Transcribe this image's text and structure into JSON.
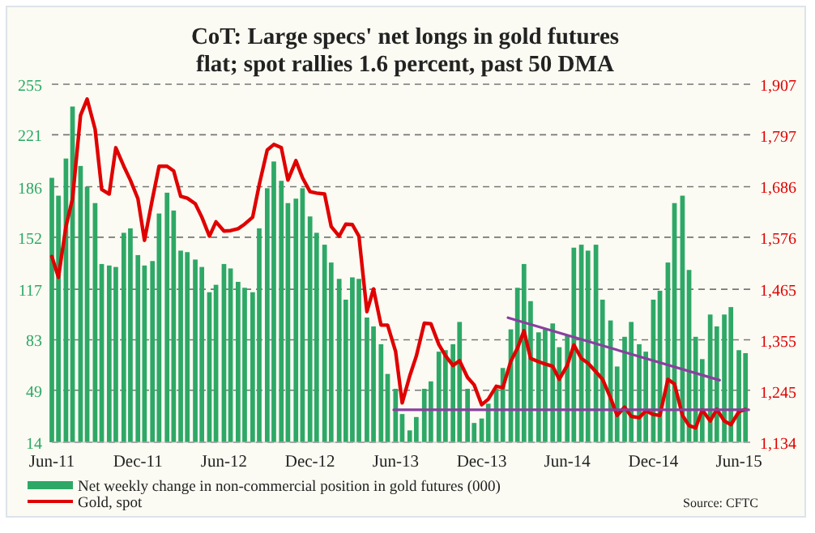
{
  "chart_data": {
    "type": "bar",
    "title": "CoT:  Large specs' net longs in gold futures\nflat; spot rallies 1.6 percent, past 50 DMA",
    "x": [
      "2011-06-01",
      "2011-06-15",
      "2011-07-01",
      "2011-07-15",
      "2011-08-01",
      "2011-08-15",
      "2011-09-01",
      "2011-09-15",
      "2011-10-01",
      "2011-10-15",
      "2011-11-01",
      "2011-11-15",
      "2011-12-01",
      "2011-12-15",
      "2012-01-01",
      "2012-01-15",
      "2012-02-01",
      "2012-02-15",
      "2012-03-01",
      "2012-03-15",
      "2012-04-01",
      "2012-04-15",
      "2012-05-01",
      "2012-05-15",
      "2012-06-01",
      "2012-06-15",
      "2012-07-01",
      "2012-07-15",
      "2012-08-01",
      "2012-08-15",
      "2012-09-01",
      "2012-09-15",
      "2012-10-01",
      "2012-10-15",
      "2012-11-01",
      "2012-11-15",
      "2012-12-01",
      "2012-12-15",
      "2013-01-01",
      "2013-01-15",
      "2013-02-01",
      "2013-02-15",
      "2013-03-01",
      "2013-03-15",
      "2013-04-01",
      "2013-04-15",
      "2013-05-01",
      "2013-05-15",
      "2013-06-01",
      "2013-06-15",
      "2013-07-01",
      "2013-07-15",
      "2013-08-01",
      "2013-08-15",
      "2013-09-01",
      "2013-09-15",
      "2013-10-01",
      "2013-10-15",
      "2013-11-01",
      "2013-11-15",
      "2013-12-01",
      "2013-12-15",
      "2014-01-01",
      "2014-01-15",
      "2014-02-01",
      "2014-02-15",
      "2014-03-01",
      "2014-03-15",
      "2014-04-01",
      "2014-04-15",
      "2014-05-01",
      "2014-05-15",
      "2014-06-01",
      "2014-06-15",
      "2014-07-01",
      "2014-07-15",
      "2014-08-01",
      "2014-08-15",
      "2014-09-01",
      "2014-09-15",
      "2014-10-01",
      "2014-10-15",
      "2014-11-01",
      "2014-11-15",
      "2014-12-01",
      "2014-12-15",
      "2015-01-01",
      "2015-01-15",
      "2015-02-01",
      "2015-02-15",
      "2015-03-01",
      "2015-03-15",
      "2015-04-01",
      "2015-04-15",
      "2015-05-01",
      "2015-05-15",
      "2015-06-01",
      "2015-06-15"
    ],
    "series": [
      {
        "name": "Net weekly change in non-commercial position in gold futures (000)",
        "color": "#2ea866",
        "values": [
          192,
          180,
          205,
          240,
          200,
          186,
          175,
          134,
          133,
          132,
          155,
          158,
          140,
          133,
          136,
          168,
          182,
          170,
          143,
          142,
          137,
          132,
          115,
          120,
          134,
          131,
          122,
          118,
          115,
          158,
          185,
          203,
          190,
          175,
          178,
          185,
          166,
          155,
          147,
          135,
          124,
          110,
          125,
          124,
          98,
          92,
          80,
          60,
          50,
          33,
          22,
          31,
          50,
          55,
          75,
          76,
          80,
          95,
          50,
          27,
          30,
          40,
          50,
          64,
          90,
          118,
          134,
          109,
          88,
          90,
          94,
          78,
          86,
          145,
          147,
          143,
          147,
          110,
          96,
          65,
          85,
          95,
          80,
          75,
          110,
          116,
          135,
          175,
          180,
          130,
          85,
          70,
          100,
          92,
          100,
          105,
          76,
          74
        ]
      },
      {
        "name": "Gold, spot",
        "type": "line",
        "axis": "y2",
        "color": "#e00000",
        "values": [
          1535,
          1490,
          1600,
          1660,
          1840,
          1875,
          1810,
          1680,
          1670,
          1770,
          1730,
          1700,
          1660,
          1570,
          1660,
          1730,
          1730,
          1720,
          1665,
          1661,
          1649,
          1620,
          1579,
          1610,
          1590,
          1591,
          1595,
          1605,
          1620,
          1690,
          1765,
          1777,
          1770,
          1700,
          1742,
          1705,
          1675,
          1672,
          1670,
          1600,
          1579,
          1605,
          1604,
          1579,
          1416,
          1465,
          1387,
          1387,
          1330,
          1219,
          1277,
          1320,
          1391,
          1390,
          1345,
          1321,
          1300,
          1310,
          1274,
          1258,
          1215,
          1227,
          1255,
          1252,
          1309,
          1337,
          1375,
          1315,
          1308,
          1303,
          1298,
          1270,
          1300,
          1344,
          1315,
          1305,
          1286,
          1270,
          1230,
          1192,
          1210,
          1190,
          1187,
          1202,
          1194,
          1192,
          1270,
          1260,
          1192,
          1170,
          1165,
          1204,
          1180,
          1205,
          1180,
          1172,
          1200,
          1205
        ]
      },
      {
        "type": "line",
        "axis": "y2",
        "color": "#8a3fa0",
        "x": [
          "2013-05-28",
          "2015-06-22"
        ],
        "values": [
          1204,
          1204
        ]
      },
      {
        "type": "line",
        "axis": "y2",
        "color": "#8a3fa0",
        "x": [
          "2014-01-26",
          "2015-04-21"
        ],
        "values": [
          1403,
          1268
        ]
      }
    ],
    "xlim": [
      "2011-06-01",
      "2015-06-25"
    ],
    "xticks": [
      {
        "value": "2011-06-01",
        "label": "Jun-11"
      },
      {
        "value": "2011-12-01",
        "label": "Dec-11"
      },
      {
        "value": "2012-06-01",
        "label": "Jun-12"
      },
      {
        "value": "2012-12-01",
        "label": "Dec-12"
      },
      {
        "value": "2013-06-01",
        "label": "Jun-13"
      },
      {
        "value": "2013-12-01",
        "label": "Dec-13"
      },
      {
        "value": "2014-06-01",
        "label": "Jun-14"
      },
      {
        "value": "2014-12-01",
        "label": "Dec-14"
      },
      {
        "value": "2015-06-01",
        "label": "Jun-15"
      }
    ],
    "ylim": [
      14,
      255
    ],
    "yticks": [
      14,
      49,
      83,
      117,
      152,
      186,
      221,
      255
    ],
    "y2lim": [
      1134,
      1907
    ],
    "y2ticks": [
      {
        "value": 1134,
        "label": "1,134"
      },
      {
        "value": 1245,
        "label": "1,245"
      },
      {
        "value": 1355,
        "label": "1,355"
      },
      {
        "value": 1465,
        "label": "1,465"
      },
      {
        "value": 1576,
        "label": "1,576"
      },
      {
        "value": 1686,
        "label": "1,686"
      },
      {
        "value": 1797,
        "label": "1,797"
      },
      {
        "value": 1907,
        "label": "1,907"
      }
    ],
    "grid": "y",
    "legend": "bottom left",
    "annotations": [
      "Source: CFTC"
    ]
  }
}
